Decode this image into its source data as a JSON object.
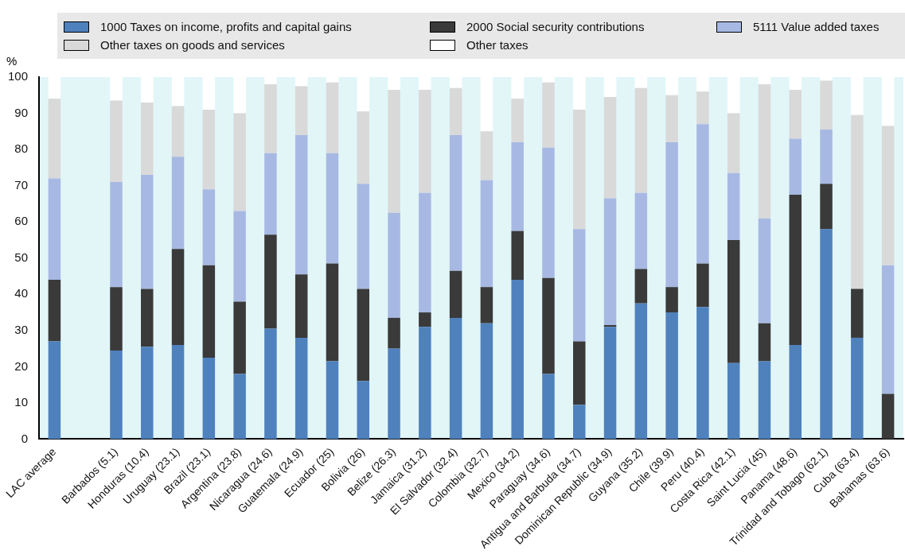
{
  "chart_data": {
    "type": "bar",
    "stacked": true,
    "ylabel": "%",
    "legend": "top",
    "categories": [
      "LAC average",
      null,
      "Barbados (5.1)",
      "Honduras (10.4)",
      "Uruguay (23.1)",
      "Brazil (23.1)",
      "Argentina (23.8)",
      "Nicaragua (24.6)",
      "Guatemala (24.9)",
      "Ecuador (25)",
      "Bolivia (26)",
      "Belize (26.3)",
      "Jamaica (31.2)",
      "El Salvador (32.4)",
      "Colombia (32.7)",
      "Mexico (34.2)",
      "Paraguay (34.6)",
      "Antigua and Barbuda (34.7)",
      "Dominican Republic (34.9)",
      "Guyana (35.2)",
      "Chile (39.9)",
      "Peru (40.4)",
      "Costa Rica (42.1)",
      "Saint Lucia (45)",
      "Panama (48.6)",
      "Trinidad and Tobago (62.1)",
      "Cuba (63.4)",
      "Bahamas (63.6)"
    ],
    "series": [
      {
        "name": "1000 Taxes on income, profits and capital gains",
        "color": "#4f81bd",
        "values": [
          27,
          null,
          24.5,
          25.5,
          26,
          22.5,
          18,
          30.5,
          28,
          21.5,
          16,
          25,
          31,
          33.5,
          32,
          44,
          18,
          9.5,
          31,
          37.5,
          35,
          36.5,
          21,
          21.5,
          26,
          58,
          28,
          0
        ]
      },
      {
        "name": "2000 Social security contributions",
        "color": "#3a3a3a",
        "values": [
          17,
          null,
          17.5,
          16,
          26.5,
          25.5,
          20,
          26,
          17.5,
          27,
          25.5,
          8.5,
          4,
          13,
          10,
          13.5,
          26.5,
          17.5,
          0.5,
          9.5,
          7,
          12,
          34,
          10.5,
          41.5,
          12.5,
          13.5,
          12.5
        ]
      },
      {
        "name": "5111 Value added taxes",
        "color": "#a7b9e3",
        "values": [
          28,
          null,
          29,
          31.5,
          25.5,
          21,
          25,
          22.5,
          38.5,
          30.5,
          29,
          29,
          33,
          37.5,
          29.5,
          24.5,
          36,
          31,
          35,
          21,
          40,
          38.5,
          18.5,
          29,
          15.5,
          15,
          0,
          35.5
        ]
      },
      {
        "name": "Other taxes on goods and services",
        "color": "#d9d9d9",
        "values": [
          22,
          null,
          22.5,
          20,
          14,
          22,
          27,
          19,
          13.5,
          19.5,
          20,
          34,
          28.5,
          13,
          13.5,
          12,
          18,
          33,
          28,
          29,
          13,
          9,
          16.5,
          37,
          13.5,
          13.5,
          48,
          38.5
        ]
      },
      {
        "name": "Other taxes",
        "color": "#ffffff",
        "values": [
          6,
          null,
          6.5,
          7,
          8,
          9,
          10,
          2,
          2.5,
          1.5,
          9.5,
          3.5,
          3.5,
          3,
          15,
          6,
          1.5,
          9,
          5.5,
          3,
          5,
          4,
          10,
          2,
          3.5,
          1,
          10.5,
          13.5
        ]
      }
    ],
    "ylim": [
      0,
      100
    ],
    "yticks": [
      0,
      10,
      20,
      30,
      40,
      50,
      60,
      70,
      80,
      90,
      100
    ]
  }
}
